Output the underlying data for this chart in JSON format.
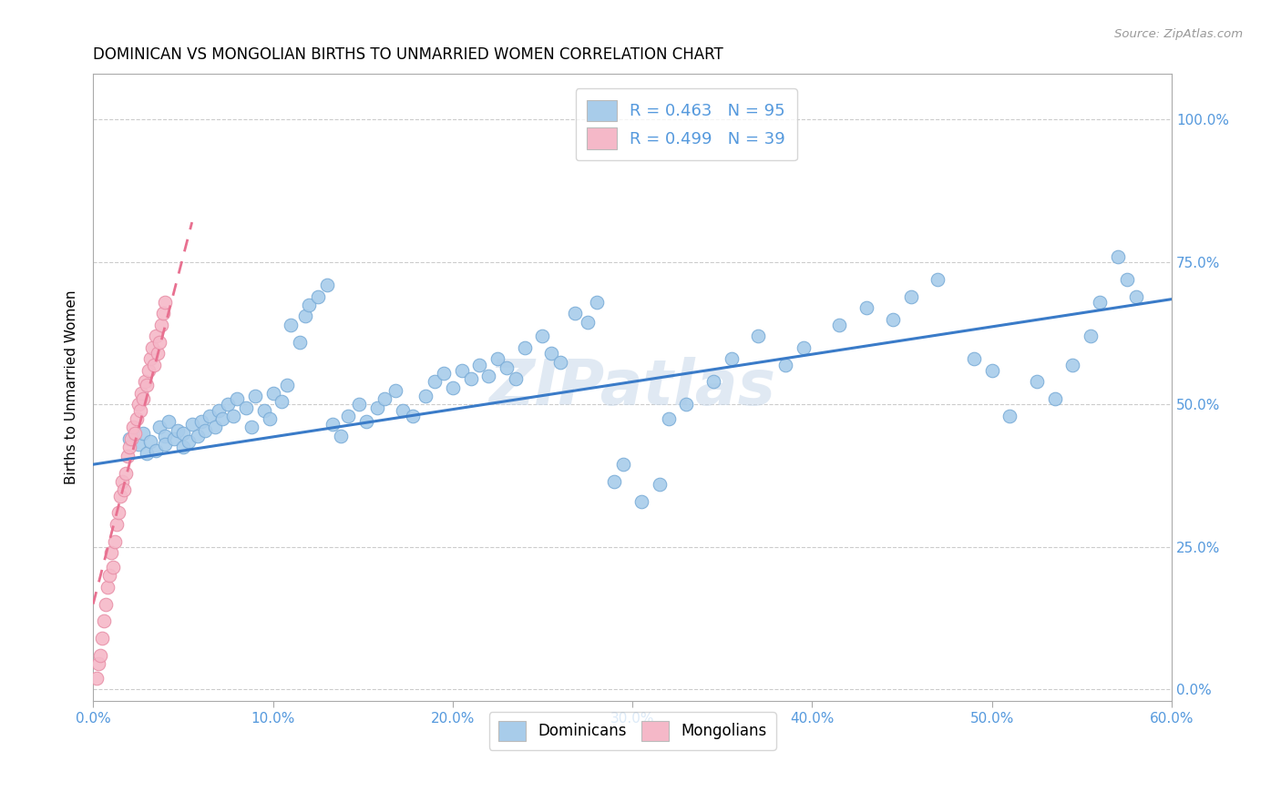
{
  "title": "DOMINICAN VS MONGOLIAN BIRTHS TO UNMARRIED WOMEN CORRELATION CHART",
  "source": "Source: ZipAtlas.com",
  "ylabel": "Births to Unmarried Women",
  "xlim": [
    0.0,
    0.6
  ],
  "ylim": [
    -0.02,
    1.08
  ],
  "yticks": [
    0.0,
    0.25,
    0.5,
    0.75,
    1.0
  ],
  "xticks": [
    0.0,
    0.1,
    0.2,
    0.3,
    0.4,
    0.5,
    0.6
  ],
  "watermark": "ZIPatlas",
  "dominican_color": "#A8CCEA",
  "dominican_edge_color": "#7BADD8",
  "mongolian_color": "#F5B8C8",
  "mongolian_edge_color": "#E890A8",
  "trendline_dom_color": "#3A7BC8",
  "trendline_mong_color": "#E87090",
  "axis_color": "#5599DD",
  "dom_R": 0.463,
  "dom_N": 95,
  "mong_R": 0.499,
  "mong_N": 39,
  "dom_trend_x0": 0.0,
  "dom_trend_y0": 0.395,
  "dom_trend_x1": 0.6,
  "dom_trend_y1": 0.685,
  "mong_trend_x0": 0.0,
  "mong_trend_y0": 0.15,
  "mong_trend_x1": 0.055,
  "mong_trend_y1": 0.82,
  "dominican_x": [
    0.02,
    0.025,
    0.028,
    0.03,
    0.032,
    0.035,
    0.037,
    0.04,
    0.04,
    0.042,
    0.045,
    0.047,
    0.05,
    0.05,
    0.053,
    0.055,
    0.058,
    0.06,
    0.062,
    0.065,
    0.068,
    0.07,
    0.072,
    0.075,
    0.078,
    0.08,
    0.085,
    0.088,
    0.09,
    0.095,
    0.098,
    0.1,
    0.105,
    0.108,
    0.11,
    0.115,
    0.118,
    0.12,
    0.125,
    0.13,
    0.133,
    0.138,
    0.142,
    0.148,
    0.152,
    0.158,
    0.162,
    0.168,
    0.172,
    0.178,
    0.185,
    0.19,
    0.195,
    0.2,
    0.205,
    0.21,
    0.215,
    0.22,
    0.225,
    0.23,
    0.235,
    0.24,
    0.25,
    0.255,
    0.26,
    0.268,
    0.275,
    0.28,
    0.29,
    0.295,
    0.305,
    0.315,
    0.32,
    0.33,
    0.345,
    0.355,
    0.37,
    0.385,
    0.395,
    0.415,
    0.43,
    0.445,
    0.455,
    0.47,
    0.49,
    0.5,
    0.51,
    0.525,
    0.535,
    0.545,
    0.555,
    0.56,
    0.57,
    0.575,
    0.58
  ],
  "dominican_y": [
    0.44,
    0.43,
    0.45,
    0.415,
    0.435,
    0.42,
    0.46,
    0.445,
    0.43,
    0.47,
    0.44,
    0.455,
    0.425,
    0.45,
    0.435,
    0.465,
    0.445,
    0.47,
    0.455,
    0.48,
    0.46,
    0.49,
    0.475,
    0.5,
    0.48,
    0.51,
    0.495,
    0.46,
    0.515,
    0.49,
    0.475,
    0.52,
    0.505,
    0.535,
    0.64,
    0.61,
    0.655,
    0.675,
    0.69,
    0.71,
    0.465,
    0.445,
    0.48,
    0.5,
    0.47,
    0.495,
    0.51,
    0.525,
    0.49,
    0.48,
    0.515,
    0.54,
    0.555,
    0.53,
    0.56,
    0.545,
    0.57,
    0.55,
    0.58,
    0.565,
    0.545,
    0.6,
    0.62,
    0.59,
    0.575,
    0.66,
    0.645,
    0.68,
    0.365,
    0.395,
    0.33,
    0.36,
    0.475,
    0.5,
    0.54,
    0.58,
    0.62,
    0.57,
    0.6,
    0.64,
    0.67,
    0.65,
    0.69,
    0.72,
    0.58,
    0.56,
    0.48,
    0.54,
    0.51,
    0.57,
    0.62,
    0.68,
    0.76,
    0.72,
    0.69
  ],
  "mongolian_x": [
    0.002,
    0.003,
    0.004,
    0.005,
    0.006,
    0.007,
    0.008,
    0.009,
    0.01,
    0.011,
    0.012,
    0.013,
    0.014,
    0.015,
    0.016,
    0.017,
    0.018,
    0.019,
    0.02,
    0.021,
    0.022,
    0.023,
    0.024,
    0.025,
    0.026,
    0.027,
    0.028,
    0.029,
    0.03,
    0.031,
    0.032,
    0.033,
    0.034,
    0.035,
    0.036,
    0.037,
    0.038,
    0.039,
    0.04
  ],
  "mongolian_y": [
    0.02,
    0.045,
    0.06,
    0.09,
    0.12,
    0.15,
    0.18,
    0.2,
    0.24,
    0.215,
    0.26,
    0.29,
    0.31,
    0.34,
    0.365,
    0.35,
    0.38,
    0.41,
    0.425,
    0.44,
    0.46,
    0.45,
    0.475,
    0.5,
    0.49,
    0.52,
    0.51,
    0.54,
    0.535,
    0.56,
    0.58,
    0.6,
    0.57,
    0.62,
    0.59,
    0.61,
    0.64,
    0.66,
    0.68
  ]
}
